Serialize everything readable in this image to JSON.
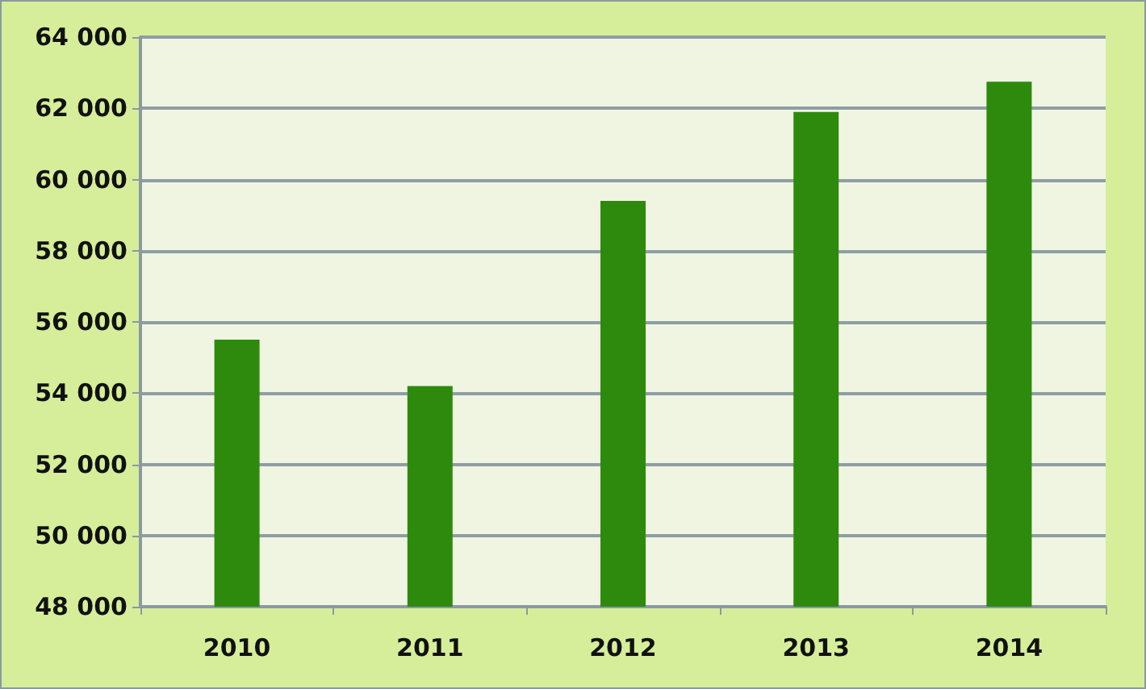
{
  "chart_data": {
    "type": "bar",
    "categories": [
      "2010",
      "2011",
      "2012",
      "2013",
      "2014"
    ],
    "values": [
      55500,
      54200,
      59400,
      61900,
      62750
    ],
    "color": "#2e8a0c",
    "ylim": [
      48000,
      64000
    ],
    "yticks": [
      {
        "value": 48000,
        "label": "48 000"
      },
      {
        "value": 50000,
        "label": "50 000"
      },
      {
        "value": 52000,
        "label": "52 000"
      },
      {
        "value": 54000,
        "label": "54 000"
      },
      {
        "value": 56000,
        "label": "56 000"
      },
      {
        "value": 58000,
        "label": "58 000"
      },
      {
        "value": 60000,
        "label": "60 000"
      },
      {
        "value": 62000,
        "label": "62 000"
      },
      {
        "value": 64000,
        "label": "64 000"
      }
    ],
    "grid": "y"
  }
}
